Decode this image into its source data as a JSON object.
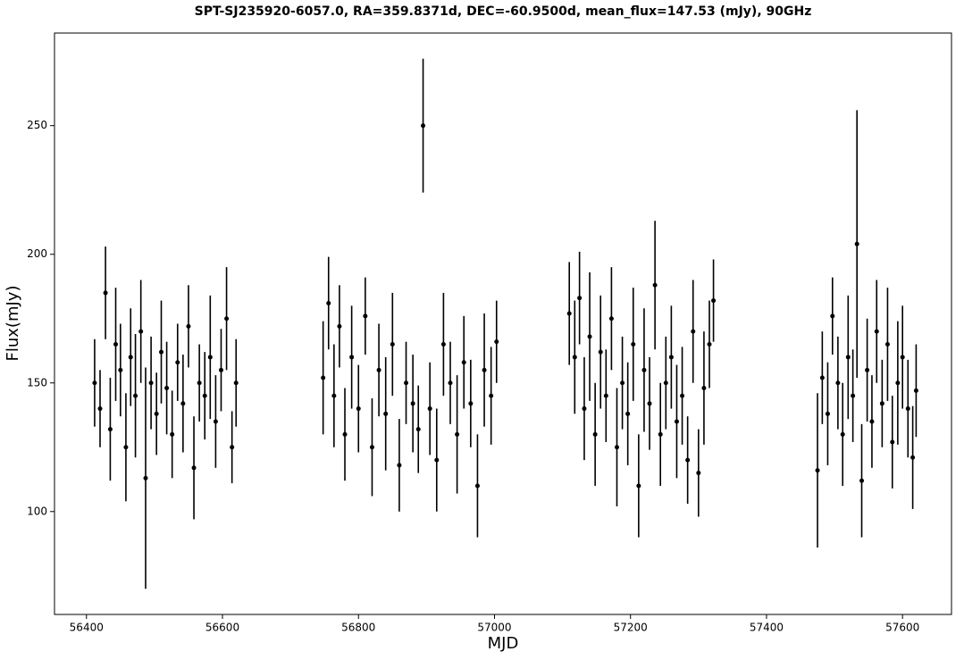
{
  "chart_data": {
    "type": "errorbar",
    "title": "SPT-SJ235920-6057.0, RA=359.8371d, DEC=-60.9500d, mean_flux=147.53 (mJy), 90GHz",
    "x_label": "MJD",
    "y_label": "Flux(mJy)",
    "color": "#000000",
    "xlim": [
      56353,
      57672
    ],
    "ylim": [
      60,
      286
    ],
    "xticks": [
      56400,
      56600,
      56800,
      57000,
      57200,
      57400,
      57600
    ],
    "yticks": [
      100,
      150,
      200,
      250
    ],
    "x": [
      56412,
      56420,
      56428,
      56435,
      56443,
      56450,
      56458,
      56465,
      56472,
      56480,
      56487,
      56495,
      56503,
      56510,
      56518,
      56526,
      56534,
      56542,
      56550,
      56558,
      56566,
      56574,
      56582,
      56590,
      56598,
      56606,
      56614,
      56620,
      56748,
      56756,
      56764,
      56772,
      56780,
      56790,
      56800,
      56810,
      56820,
      56830,
      56840,
      56850,
      56860,
      56870,
      56880,
      56888,
      56895,
      56905,
      56915,
      56925,
      56935,
      56945,
      56955,
      56965,
      56975,
      56985,
      56995,
      57003,
      57110,
      57118,
      57125,
      57132,
      57140,
      57148,
      57156,
      57164,
      57172,
      57180,
      57188,
      57196,
      57204,
      57212,
      57220,
      57228,
      57236,
      57244,
      57252,
      57260,
      57268,
      57276,
      57284,
      57292,
      57300,
      57308,
      57316,
      57322,
      57475,
      57482,
      57490,
      57497,
      57505,
      57512,
      57520,
      57527,
      57533,
      57540,
      57548,
      57555,
      57562,
      57570,
      57578,
      57585,
      57593,
      57600,
      57608,
      57615,
      57620
    ],
    "values": [
      150,
      140,
      185,
      132,
      165,
      155,
      125,
      160,
      145,
      170,
      113,
      150,
      138,
      162,
      148,
      130,
      158,
      142,
      172,
      117,
      150,
      145,
      160,
      135,
      155,
      175,
      125,
      150,
      152,
      181,
      145,
      172,
      130,
      160,
      140,
      176,
      125,
      155,
      138,
      165,
      118,
      150,
      142,
      132,
      250,
      140,
      120,
      165,
      150,
      130,
      158,
      142,
      110,
      155,
      145,
      166,
      177,
      160,
      183,
      140,
      168,
      130,
      162,
      145,
      175,
      125,
      150,
      138,
      165,
      110,
      155,
      142,
      188,
      130,
      150,
      160,
      135,
      145,
      120,
      170,
      115,
      148,
      165,
      182,
      116,
      152,
      138,
      176,
      150,
      130,
      160,
      145,
      204,
      112,
      155,
      135,
      170,
      142,
      165,
      127,
      150,
      160,
      140,
      121,
      147
    ],
    "errors": [
      17,
      15,
      18,
      20,
      22,
      18,
      21,
      19,
      24,
      20,
      43,
      18,
      16,
      20,
      18,
      17,
      15,
      19,
      16,
      20,
      15,
      17,
      24,
      18,
      16,
      20,
      14,
      17,
      22,
      18,
      20,
      16,
      18,
      20,
      17,
      15,
      19,
      18,
      22,
      20,
      18,
      16,
      19,
      17,
      26,
      18,
      20,
      20,
      16,
      23,
      18,
      17,
      20,
      22,
      19,
      16,
      20,
      22,
      18,
      20,
      25,
      20,
      22,
      18,
      20,
      23,
      18,
      20,
      22,
      20,
      24,
      18,
      25,
      20,
      18,
      20,
      22,
      19,
      17,
      20,
      17,
      22,
      17,
      16,
      30,
      18,
      20,
      15,
      18,
      20,
      24,
      18,
      52,
      22,
      20,
      18,
      20,
      17,
      22,
      18,
      24,
      20,
      19,
      20,
      18
    ]
  }
}
